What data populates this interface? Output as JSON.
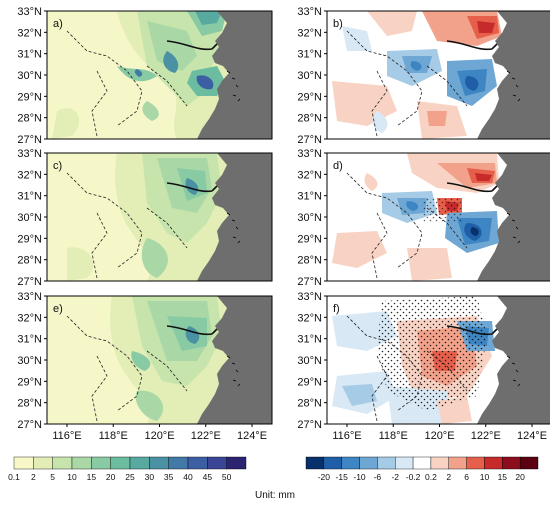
{
  "figure": {
    "unit_label": "Unit: mm",
    "panel_labels": [
      "a)",
      "b)",
      "c)",
      "d)",
      "e)",
      "f)"
    ],
    "lat_ticks": [
      "33°N",
      "32°N",
      "31°N",
      "30°N",
      "29°N",
      "28°N",
      "27°N"
    ],
    "lon_ticks": [
      "116°E",
      "118°E",
      "120°E",
      "122°E",
      "124°E"
    ],
    "left_colorbar": {
      "labels": [
        "0.1",
        "2",
        "5",
        "10",
        "15",
        "20",
        "25",
        "30",
        "35",
        "40",
        "45",
        "50"
      ],
      "colors": [
        "#f7f7c8",
        "#e2eeb6",
        "#c7e4ad",
        "#a9d8a6",
        "#88caa3",
        "#6cbc9f",
        "#58a9a0",
        "#4a92a3",
        "#4279a6",
        "#3c5fa3",
        "#3a4596",
        "#2b2470"
      ]
    },
    "right_colorbar": {
      "labels": [
        "-20",
        "-15",
        "-10",
        "-6",
        "-2",
        "-0.2",
        "0.2",
        "2",
        "6",
        "10",
        "15",
        "20"
      ],
      "colors": [
        "#08316b",
        "#1f5fa8",
        "#3d86c3",
        "#6ea7d4",
        "#a6cbe6",
        "#d8e8f4",
        "#ffffff",
        "#f8d3c4",
        "#f2a28a",
        "#e65f4b",
        "#c62a2a",
        "#8c0d1c",
        "#5a0010"
      ]
    },
    "colors": {
      "land_base": "#f6f7c9",
      "ocean": "#6e6e6e",
      "diff_base": "#ffffff"
    }
  }
}
